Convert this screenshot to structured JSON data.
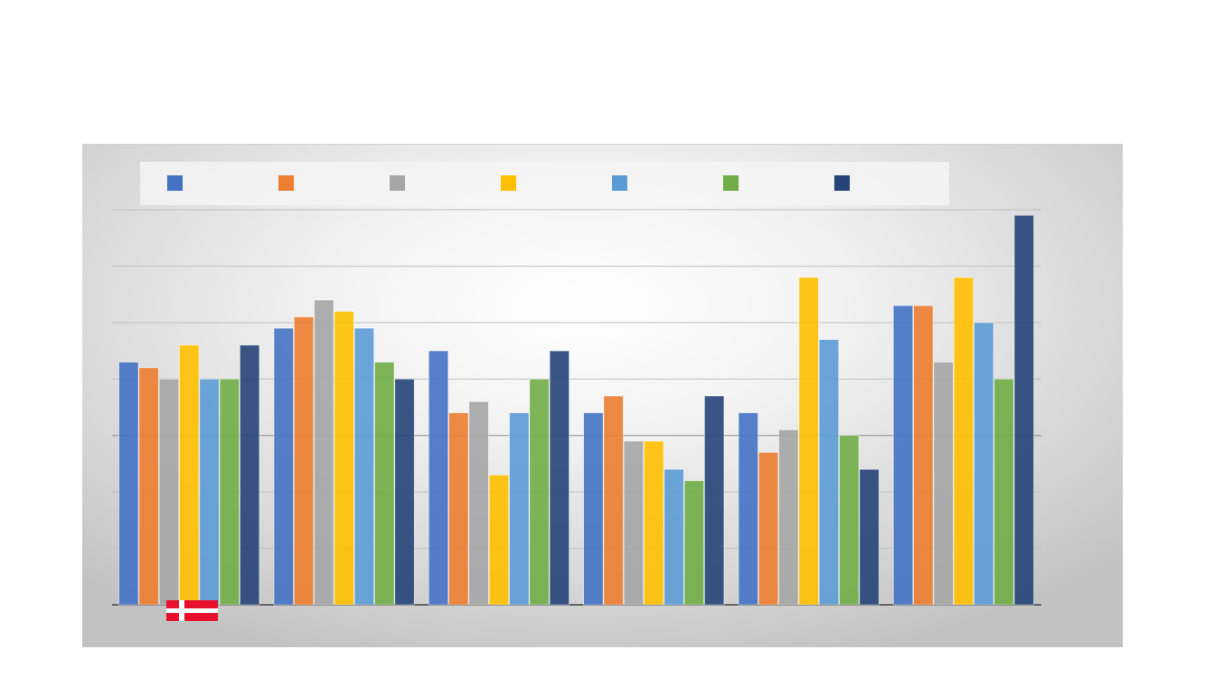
{
  "chart_data": {
    "type": "bar",
    "title": "",
    "xlabel": "",
    "ylabel": "",
    "ylim": [
      0,
      7
    ],
    "grid": true,
    "legend_position": "top",
    "categories": [
      "",
      "",
      "",
      "",
      "",
      ""
    ],
    "series": [
      {
        "color": "#4472C4",
        "values": [
          4.3,
          4.9,
          4.5,
          3.4,
          3.4,
          5.3
        ]
      },
      {
        "color": "#ED7D31",
        "values": [
          4.2,
          5.1,
          3.4,
          3.7,
          2.7,
          5.3
        ]
      },
      {
        "color": "#A5A5A5",
        "values": [
          4.0,
          5.4,
          3.6,
          2.9,
          3.1,
          4.3
        ]
      },
      {
        "color": "#FFC000",
        "values": [
          4.6,
          5.2,
          2.3,
          2.9,
          5.8,
          5.8
        ]
      },
      {
        "color": "#5B9BD5",
        "values": [
          4.0,
          4.9,
          3.4,
          2.4,
          4.7,
          5.0
        ]
      },
      {
        "color": "#70AD47",
        "values": [
          4.0,
          4.3,
          4.0,
          2.2,
          3.0,
          4.0
        ]
      },
      {
        "color": "#264478",
        "values": [
          4.6,
          4.0,
          4.5,
          3.7,
          2.4,
          6.9
        ]
      }
    ]
  },
  "flag": {
    "icon": "denmark-flag-icon",
    "colors": [
      "#E8112D",
      "#FFFFFF"
    ]
  }
}
